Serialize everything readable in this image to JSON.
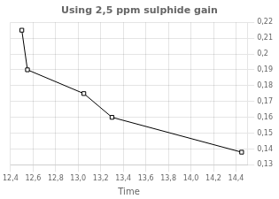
{
  "chart_data": {
    "type": "line",
    "title": "Using 2,5 ppm sulphide gain",
    "xlabel": "Time",
    "x": [
      12.5,
      12.55,
      13.05,
      13.3,
      14.45
    ],
    "values": [
      0.215,
      0.19,
      0.175,
      0.16,
      0.138
    ],
    "color": "#000000",
    "marker": "square",
    "xlim": [
      12.4,
      14.5
    ],
    "ylim": [
      0.13,
      0.22
    ],
    "xticks": [
      {
        "value": 12.4,
        "label": "12,4"
      },
      {
        "value": 12.6,
        "label": "12,6"
      },
      {
        "value": 12.8,
        "label": "12,8"
      },
      {
        "value": 13.0,
        "label": "13,0"
      },
      {
        "value": 13.2,
        "label": "13,2"
      },
      {
        "value": 13.4,
        "label": "13,4"
      },
      {
        "value": 13.6,
        "label": "13,6"
      },
      {
        "value": 13.8,
        "label": "13,8"
      },
      {
        "value": 14.0,
        "label": "14,0"
      },
      {
        "value": 14.2,
        "label": "14,2"
      },
      {
        "value": 14.4,
        "label": "14,4"
      }
    ],
    "yticks": [
      {
        "value": 0.13,
        "label": "0,13"
      },
      {
        "value": 0.14,
        "label": "0,14"
      },
      {
        "value": 0.15,
        "label": "0,15"
      },
      {
        "value": 0.16,
        "label": "0,16"
      },
      {
        "value": 0.17,
        "label": "0,17"
      },
      {
        "value": 0.18,
        "label": "0,18"
      },
      {
        "value": 0.19,
        "label": "0,19"
      },
      {
        "value": 0.2,
        "label": "0,2"
      },
      {
        "value": 0.21,
        "label": "0,21"
      },
      {
        "value": 0.22,
        "label": "0,22"
      }
    ],
    "grid": true
  }
}
